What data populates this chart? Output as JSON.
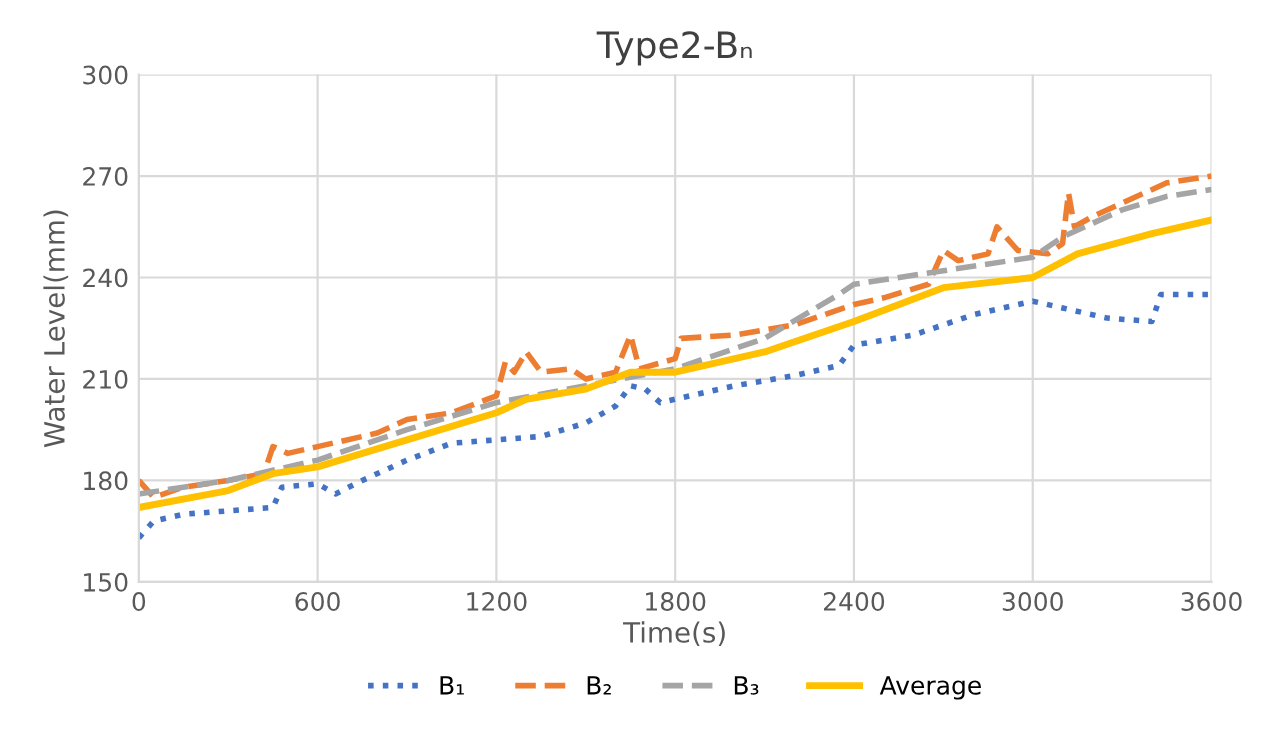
{
  "chart_data": {
    "type": "line",
    "title": "Type2-Bₙ",
    "xlabel": "Time(s)",
    "ylabel": "Water Level(mm)",
    "xlim": [
      0,
      3600
    ],
    "xticks": [
      0,
      600,
      1200,
      1800,
      2400,
      3000,
      3600
    ],
    "ylim": [
      150,
      300
    ],
    "yticks": [
      150,
      180,
      210,
      240,
      270,
      300
    ],
    "grid": true,
    "legend": "bottom",
    "marker": "none",
    "series": [
      {
        "name": "B₁",
        "color": "#4472c4",
        "line_style": "dotted",
        "x": [
          0,
          50,
          150,
          450,
          480,
          600,
          660,
          750,
          900,
          1050,
          1200,
          1350,
          1500,
          1600,
          1650,
          1700,
          1750,
          1800,
          2000,
          2200,
          2350,
          2400,
          2600,
          2800,
          3000,
          3100,
          3250,
          3400,
          3430,
          3600
        ],
        "values": [
          163,
          168,
          170,
          172,
          178,
          179,
          176,
          180,
          186,
          191,
          192,
          193,
          197,
          202,
          208,
          207,
          203,
          204,
          208,
          211,
          214,
          220,
          223,
          229,
          233,
          231,
          228,
          227,
          235,
          235
        ]
      },
      {
        "name": "B₂",
        "color": "#ed7d31",
        "line_style": "dashed",
        "x": [
          0,
          50,
          150,
          300,
          420,
          450,
          500,
          600,
          800,
          900,
          1050,
          1200,
          1230,
          1260,
          1300,
          1350,
          1450,
          1500,
          1600,
          1650,
          1680,
          1800,
          1820,
          2000,
          2200,
          2400,
          2500,
          2650,
          2700,
          2750,
          2850,
          2880,
          2950,
          3050,
          3100,
          3120,
          3140,
          3200,
          3300,
          3450,
          3600
        ],
        "values": [
          180,
          175,
          178,
          180,
          182,
          190,
          188,
          190,
          194,
          198,
          200,
          205,
          215,
          212,
          218,
          212,
          213,
          210,
          212,
          223,
          213,
          216,
          222,
          223,
          226,
          232,
          234,
          238,
          248,
          245,
          247,
          255,
          248,
          247,
          250,
          265,
          255,
          258,
          262,
          268,
          270
        ]
      },
      {
        "name": "B₃",
        "color": "#a5a5a5",
        "line_style": "dashed",
        "x": [
          0,
          300,
          600,
          900,
          1200,
          1500,
          1800,
          2100,
          2350,
          2400,
          2700,
          3000,
          3100,
          3300,
          3450,
          3600
        ],
        "values": [
          176,
          180,
          186,
          195,
          203,
          208,
          213,
          222,
          235,
          238,
          242,
          246,
          252,
          260,
          264,
          266
        ]
      },
      {
        "name": "Average",
        "color": "#ffc000",
        "line_style": "solid",
        "x": [
          0,
          300,
          450,
          600,
          900,
          1200,
          1300,
          1500,
          1650,
          1800,
          2100,
          2400,
          2700,
          3000,
          3150,
          3400,
          3600
        ],
        "values": [
          172,
          177,
          182,
          184,
          192,
          200,
          204,
          207,
          212,
          212,
          218,
          227,
          237,
          240,
          247,
          253,
          257
        ]
      }
    ]
  }
}
